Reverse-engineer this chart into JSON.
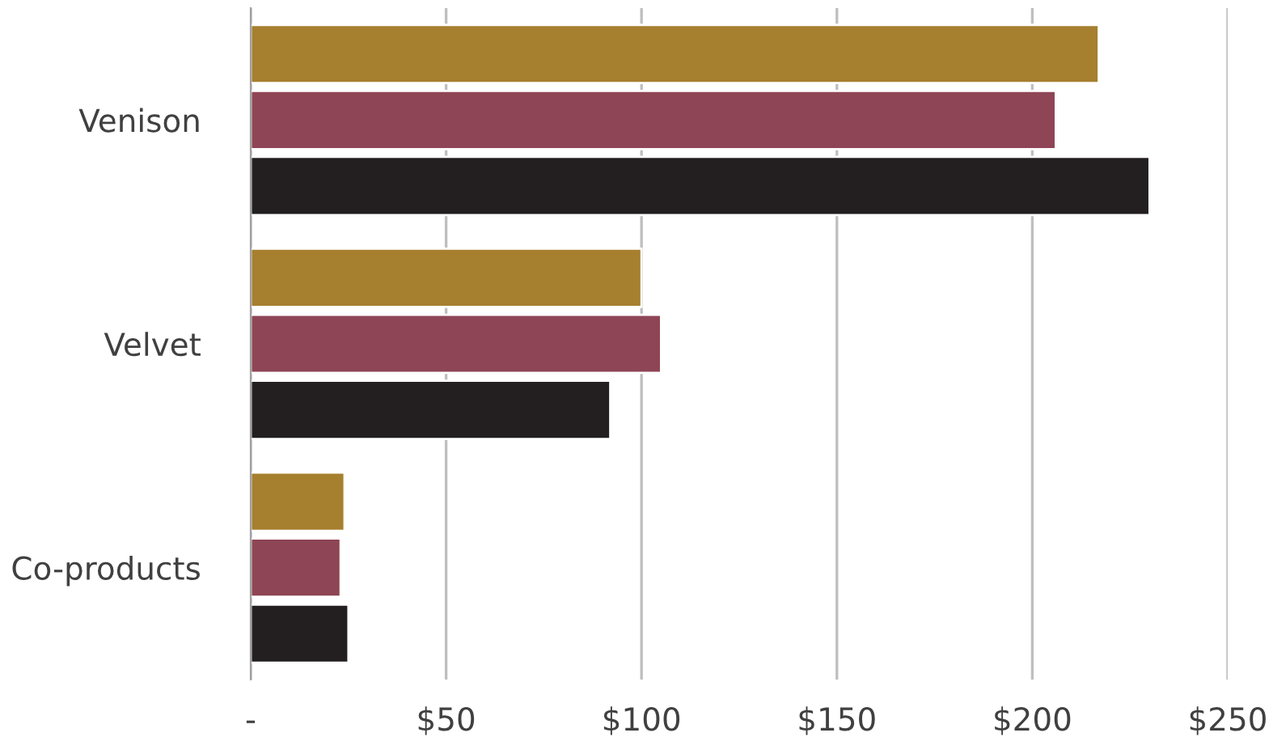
{
  "chart_data": {
    "type": "bar",
    "orientation": "horizontal",
    "categories": [
      "Venison",
      "Velvet",
      "Co-products"
    ],
    "series": [
      {
        "color": "#a67f2f",
        "values": [
          217,
          100,
          24
        ]
      },
      {
        "color": "#8e4555",
        "values": [
          206,
          105,
          23
        ]
      },
      {
        "color": "#231f20",
        "values": [
          230,
          92,
          25
        ]
      }
    ],
    "xlim": [
      0,
      250
    ],
    "xticks": [
      {
        "value": 0,
        "label": "-"
      },
      {
        "value": 50,
        "label": "$50"
      },
      {
        "value": 100,
        "label": "$100"
      },
      {
        "value": 150,
        "label": "$150"
      },
      {
        "value": 200,
        "label": "$200"
      },
      {
        "value": 250,
        "label": "$250"
      }
    ],
    "grid": "x",
    "legend": false
  }
}
